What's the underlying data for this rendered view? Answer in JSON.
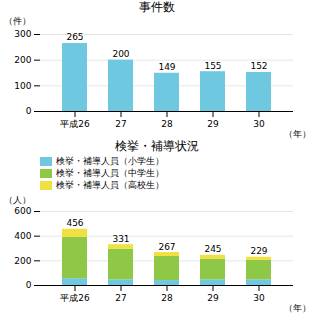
{
  "chart_data": [
    {
      "type": "bar",
      "title": "事件数",
      "categories": [
        "平成26",
        "27",
        "28",
        "29",
        "30"
      ],
      "values": [
        265,
        200,
        149,
        155,
        152
      ],
      "color": "#6dc8e0",
      "xlabel": "（年）",
      "ylabel": "（件）",
      "ylim": [
        0,
        300
      ],
      "yticks": [
        0,
        100,
        200,
        300
      ],
      "grid": true,
      "data_labels": true
    },
    {
      "type": "bar",
      "stacked": true,
      "title": "検挙・補導状況",
      "categories": [
        "平成26",
        "27",
        "28",
        "29",
        "30"
      ],
      "series": [
        {
          "name": "検挙・補導人員（小学生）",
          "color": "#6dc8e0",
          "values": [
            55,
            45,
            40,
            45,
            45
          ]
        },
        {
          "name": "検挙・補導人員（中学生）",
          "color": "#8fc846",
          "values": [
            335,
            250,
            195,
            168,
            158
          ]
        },
        {
          "name": "検挙・補導人員（高校生）",
          "color": "#f0e040",
          "values": [
            66,
            36,
            32,
            32,
            26
          ]
        }
      ],
      "totals": [
        456,
        331,
        267,
        245,
        229
      ],
      "xlabel": "（年）",
      "ylabel": "（人）",
      "ylim": [
        0,
        600
      ],
      "yticks": [
        0,
        200,
        400,
        600
      ],
      "grid": true,
      "legend": "top",
      "data_labels": true
    }
  ]
}
